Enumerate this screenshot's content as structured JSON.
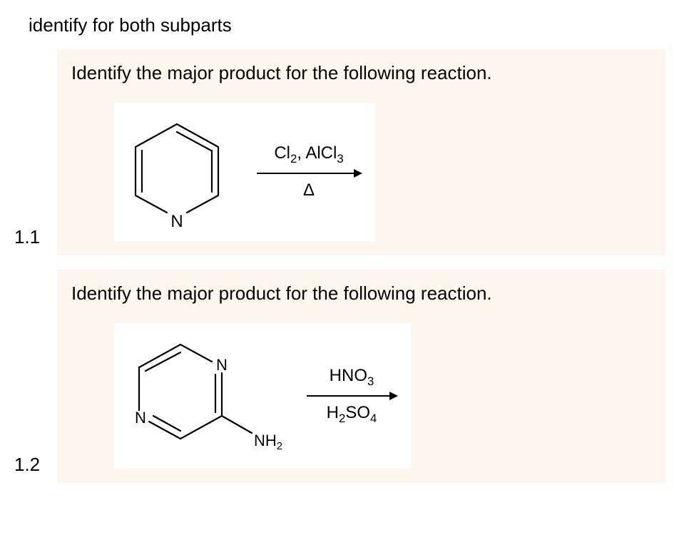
{
  "header": "identify for both subparts",
  "problems": {
    "p1": {
      "number": "1.1",
      "prompt": "Identify the major product for the following reaction.",
      "block_bg": "#fdf6ee",
      "reagent_top_html": "Cl<sub>2</sub>, AlCl<sub>3</sub>",
      "reagent_bottom_html": "Δ",
      "molecule": {
        "type": "pyridine",
        "labelN": "N"
      },
      "arrow_color": "#000000"
    },
    "p2": {
      "number": "1.2",
      "prompt": "Identify the major product for the following reaction.",
      "block_bg": "#fdf6ee",
      "reagent_top_html": "HNO<sub>3</sub>",
      "reagent_bottom_html": "H<sub>2</sub>SO<sub>4</sub>",
      "molecule": {
        "type": "aminopyrimidine",
        "labelN": "N",
        "labelNH2": "NH<sub>2</sub>"
      },
      "arrow_color": "#000000"
    }
  },
  "style": {
    "hex_stroke": "#000000",
    "hex_stroke_width": 2.2,
    "font_color": "#000000"
  }
}
